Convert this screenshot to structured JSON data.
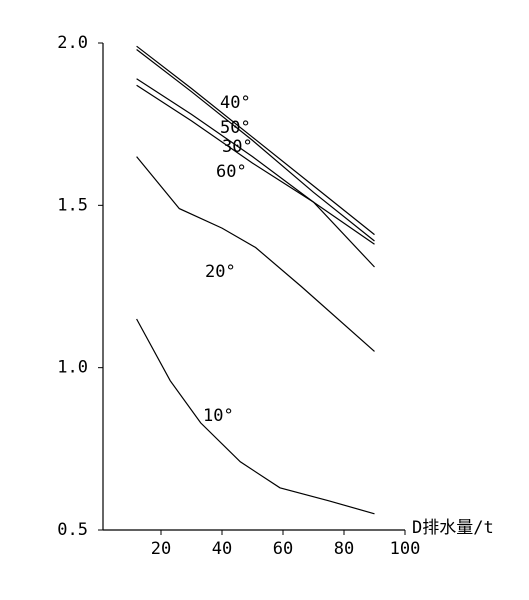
{
  "chart_data": {
    "type": "line",
    "x_label": "D排水量/t",
    "x": [
      12,
      30,
      50,
      70,
      90
    ],
    "xlim": [
      0,
      100
    ],
    "xticks": [
      20,
      40,
      60,
      80,
      100
    ],
    "ylim": [
      0.5,
      2.0
    ],
    "yticks": [
      {
        "value": 0.5,
        "label": "0.5"
      },
      {
        "value": 1.0,
        "label": "1.0"
      },
      {
        "value": 1.5,
        "label": "1.5"
      },
      {
        "value": 2.0,
        "label": "2.0"
      }
    ],
    "grid": false,
    "series": [
      {
        "name": "40°",
        "color": "#000000",
        "x": [
          12,
          30,
          50,
          70,
          90
        ],
        "values": [
          1.99,
          1.86,
          1.71,
          1.56,
          1.41
        ]
      },
      {
        "name": "50°",
        "color": "#000000",
        "x": [
          12,
          30,
          50,
          70,
          90
        ],
        "values": [
          1.98,
          1.85,
          1.7,
          1.54,
          1.39
        ]
      },
      {
        "name": "30°",
        "color": "#000000",
        "x": [
          12,
          30,
          50,
          70,
          90
        ],
        "values": [
          1.89,
          1.78,
          1.65,
          1.51,
          1.38
        ]
      },
      {
        "name": "60°",
        "color": "#000000",
        "x": [
          12,
          30,
          50,
          70,
          90
        ],
        "values": [
          1.87,
          1.76,
          1.63,
          1.51,
          1.31
        ]
      },
      {
        "name": "20°",
        "color": "#000000",
        "x": [
          12,
          26,
          40,
          51,
          66,
          90
        ],
        "values": [
          1.65,
          1.49,
          1.43,
          1.37,
          1.25,
          1.05
        ]
      },
      {
        "name": "10°",
        "color": "#000000",
        "x": [
          12,
          23,
          33,
          46,
          59,
          75,
          90
        ],
        "values": [
          1.15,
          0.96,
          0.83,
          0.71,
          0.63,
          0.59,
          0.55
        ]
      }
    ]
  }
}
